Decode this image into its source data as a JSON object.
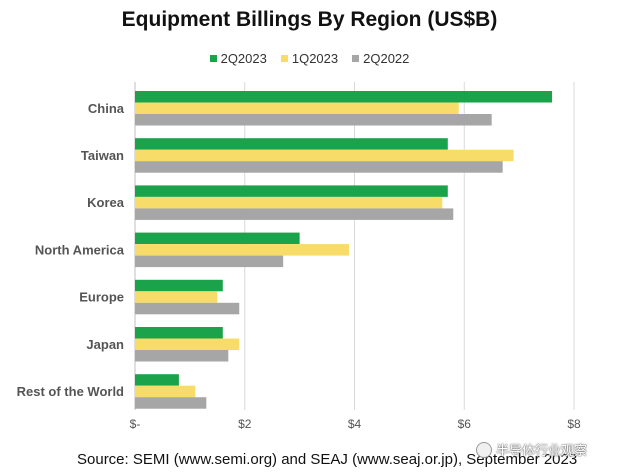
{
  "chart_data": {
    "type": "bar",
    "orientation": "horizontal",
    "title": "Equipment Billings By Region (US$B)",
    "categories": [
      "China",
      "Taiwan",
      "Korea",
      "North America",
      "Europe",
      "Japan",
      "Rest of the World"
    ],
    "series": [
      {
        "name": "2Q2023",
        "color": "#1aa34a",
        "values": [
          7.6,
          5.7,
          5.7,
          3.0,
          1.6,
          1.6,
          0.8
        ]
      },
      {
        "name": "1Q2023",
        "color": "#f8dc6a",
        "values": [
          5.9,
          6.9,
          5.6,
          3.9,
          1.5,
          1.9,
          1.1
        ]
      },
      {
        "name": "2Q2022",
        "color": "#a6a6a6",
        "values": [
          6.5,
          6.7,
          5.8,
          2.7,
          1.9,
          1.7,
          1.3
        ]
      }
    ],
    "x_ticks": [
      "$-",
      "$2",
      "$4",
      "$6",
      "$8"
    ],
    "xlim": [
      0,
      8
    ],
    "legend_position": "top-center",
    "grid": true,
    "source": "Source: SEMI (www.semi.org) and SEAJ (www.seaj.or.jp), September 2023"
  },
  "watermark": {
    "text": "半导体行业观察",
    "icon": "wechat-icon"
  }
}
